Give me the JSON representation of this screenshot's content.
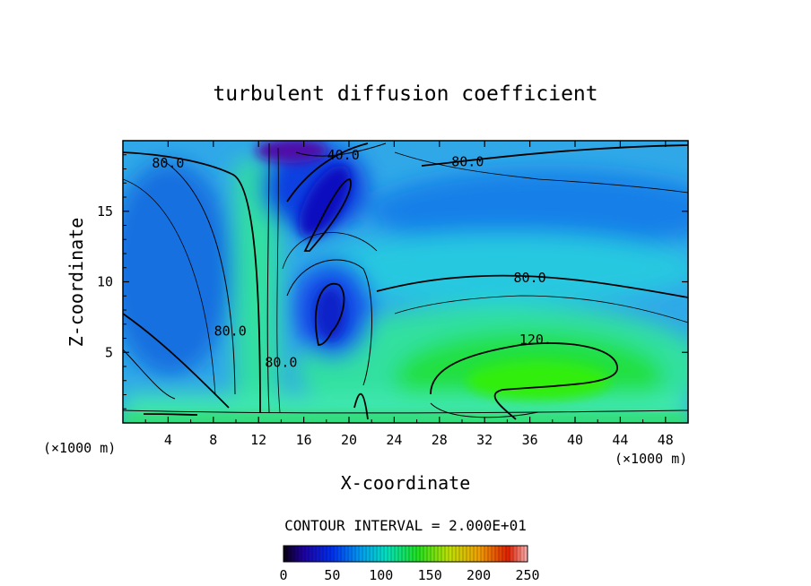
{
  "chart_data": {
    "type": "heatmap",
    "title": "turbulent diffusion coefficient",
    "xlabel": "X-coordinate",
    "ylabel": "Z-coordinate",
    "x_unit_left": "(×1000 m)",
    "x_unit_right": "(×1000 m)",
    "xlim": [
      0,
      50
    ],
    "ylim": [
      0,
      20
    ],
    "x_ticks": [
      4,
      8,
      12,
      16,
      20,
      24,
      28,
      32,
      36,
      40,
      44,
      48
    ],
    "y_ticks": [
      5,
      10,
      15
    ],
    "contour_interval_text": "CONTOUR INTERVAL = 2.000E+01",
    "colorbar": {
      "min": 0,
      "max": 250,
      "ticks": [
        0,
        50,
        100,
        150,
        200,
        250
      ]
    },
    "contour_labels": [
      {
        "text": "80.0",
        "x": 4.0,
        "y": 18.4
      },
      {
        "text": "40.0",
        "x": 19.5,
        "y": 19.0
      },
      {
        "text": "80.0",
        "x": 30.5,
        "y": 18.5
      },
      {
        "text": "80.0",
        "x": 36.0,
        "y": 10.3
      },
      {
        "text": "120.",
        "x": 36.5,
        "y": 5.9
      },
      {
        "text": "80.0",
        "x": 9.5,
        "y": 6.5
      },
      {
        "text": "80.0",
        "x": 14.0,
        "y": 4.3
      }
    ],
    "field_samples": [
      {
        "x": 3,
        "y": 15,
        "value": 40
      },
      {
        "x": 6,
        "y": 11,
        "value": 40
      },
      {
        "x": 12.5,
        "y": 10,
        "value": 100
      },
      {
        "x": 14,
        "y": 19.7,
        "value": 10
      },
      {
        "x": 19,
        "y": 15,
        "value": 20
      },
      {
        "x": 18.5,
        "y": 8,
        "value": 30
      },
      {
        "x": 38,
        "y": 4,
        "value": 130
      },
      {
        "x": 40,
        "y": 15,
        "value": 50
      },
      {
        "x": 28,
        "y": 12,
        "value": 75
      },
      {
        "x": 25,
        "y": 1,
        "value": 110
      }
    ]
  }
}
